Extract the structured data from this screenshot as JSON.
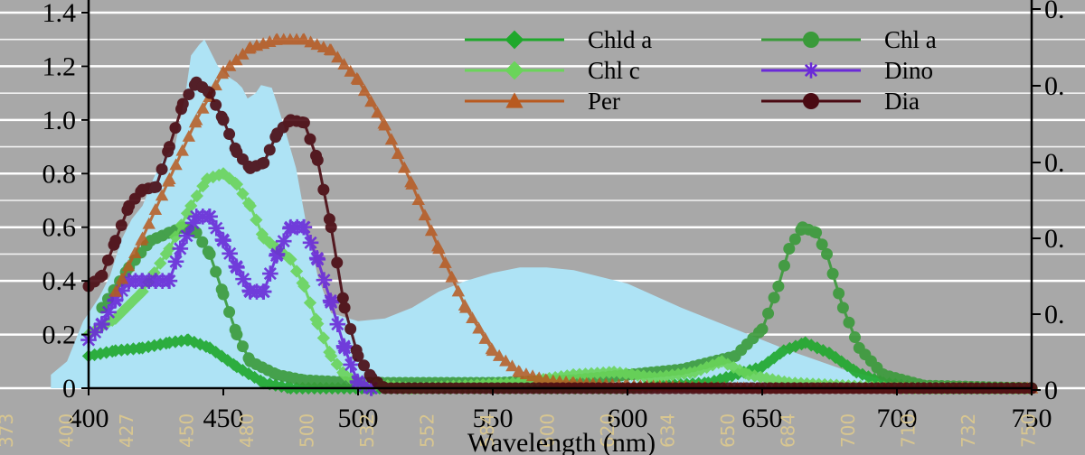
{
  "chart_data": {
    "type": "line",
    "xlabel": "Wavelength (nm)",
    "xlim": [
      400,
      750
    ],
    "ylim": [
      0,
      1.4
    ],
    "x_ticks": [
      400,
      450,
      500,
      550,
      600,
      650,
      700,
      750
    ],
    "y_ticks": [
      "0",
      "0.2",
      "0.4",
      "0.6",
      "0.8",
      "1.0",
      "1.2",
      "1.4"
    ],
    "right_ticks": [
      "0.",
      "0.",
      "0.",
      "0.",
      "0.",
      "0"
    ],
    "band_labels": [
      "373",
      "400",
      "427",
      "450",
      "480",
      "500",
      "532",
      "552",
      "584",
      "600",
      "620",
      "634",
      "650",
      "684",
      "700",
      "710",
      "732",
      "750"
    ],
    "grid": true,
    "legend_position": "top-right",
    "background_spectrum": {
      "color": "#aee3f5",
      "points": [
        [
          386,
          0.05
        ],
        [
          392,
          0.1
        ],
        [
          398,
          0.25
        ],
        [
          404,
          0.34
        ],
        [
          408,
          0.42
        ],
        [
          412,
          0.55
        ],
        [
          416,
          0.63
        ],
        [
          420,
          0.68
        ],
        [
          424,
          0.78
        ],
        [
          428,
          0.86
        ],
        [
          432,
          0.9
        ],
        [
          434,
          1.0
        ],
        [
          436,
          1.1
        ],
        [
          438,
          1.24
        ],
        [
          441,
          1.28
        ],
        [
          443,
          1.3
        ],
        [
          445,
          1.26
        ],
        [
          448,
          1.2
        ],
        [
          452,
          1.16
        ],
        [
          455,
          1.14
        ],
        [
          457,
          1.12
        ],
        [
          459,
          1.08
        ],
        [
          462,
          1.1
        ],
        [
          464,
          1.13
        ],
        [
          468,
          1.12
        ],
        [
          470,
          1.06
        ],
        [
          473,
          0.96
        ],
        [
          477,
          0.82
        ],
        [
          481,
          0.6
        ],
        [
          485,
          0.42
        ],
        [
          490,
          0.28
        ],
        [
          500,
          0.25
        ],
        [
          510,
          0.26
        ],
        [
          520,
          0.3
        ],
        [
          530,
          0.36
        ],
        [
          540,
          0.4
        ],
        [
          550,
          0.43
        ],
        [
          560,
          0.45
        ],
        [
          570,
          0.45
        ],
        [
          580,
          0.44
        ],
        [
          600,
          0.39
        ],
        [
          620,
          0.3
        ],
        [
          640,
          0.22
        ],
        [
          660,
          0.14
        ],
        [
          680,
          0.07
        ],
        [
          700,
          0.02
        ],
        [
          710,
          0.0
        ]
      ]
    },
    "series": [
      {
        "name": "Chld a",
        "color": "#1fa82c",
        "marker": "diamond",
        "points": [
          [
            400,
            0.12
          ],
          [
            410,
            0.14
          ],
          [
            420,
            0.15
          ],
          [
            430,
            0.17
          ],
          [
            437,
            0.18
          ],
          [
            445,
            0.15
          ],
          [
            455,
            0.08
          ],
          [
            465,
            0.02
          ],
          [
            475,
            0.0
          ],
          [
            600,
            0.0
          ],
          [
            630,
            0.02
          ],
          [
            650,
            0.08
          ],
          [
            658,
            0.14
          ],
          [
            666,
            0.17
          ],
          [
            675,
            0.13
          ],
          [
            685,
            0.06
          ],
          [
            695,
            0.02
          ],
          [
            710,
            0.0
          ],
          [
            750,
            0.0
          ]
        ]
      },
      {
        "name": "Chl a",
        "color": "#3a9a3a",
        "marker": "circle",
        "points": [
          [
            405,
            0.3
          ],
          [
            415,
            0.45
          ],
          [
            423,
            0.55
          ],
          [
            430,
            0.58
          ],
          [
            435,
            0.6
          ],
          [
            440,
            0.58
          ],
          [
            445,
            0.5
          ],
          [
            450,
            0.35
          ],
          [
            455,
            0.2
          ],
          [
            460,
            0.1
          ],
          [
            470,
            0.05
          ],
          [
            480,
            0.03
          ],
          [
            500,
            0.02
          ],
          [
            550,
            0.02
          ],
          [
            580,
            0.03
          ],
          [
            600,
            0.05
          ],
          [
            620,
            0.07
          ],
          [
            640,
            0.12
          ],
          [
            650,
            0.22
          ],
          [
            656,
            0.38
          ],
          [
            660,
            0.52
          ],
          [
            665,
            0.6
          ],
          [
            670,
            0.58
          ],
          [
            674,
            0.5
          ],
          [
            680,
            0.3
          ],
          [
            686,
            0.15
          ],
          [
            695,
            0.05
          ],
          [
            710,
            0.01
          ],
          [
            750,
            0.0
          ]
        ]
      },
      {
        "name": "Chl c",
        "color": "#6ad45a",
        "marker": "diamond",
        "points": [
          [
            400,
            0.2
          ],
          [
            410,
            0.26
          ],
          [
            420,
            0.36
          ],
          [
            430,
            0.52
          ],
          [
            438,
            0.68
          ],
          [
            444,
            0.78
          ],
          [
            450,
            0.8
          ],
          [
            455,
            0.76
          ],
          [
            460,
            0.68
          ],
          [
            465,
            0.56
          ],
          [
            470,
            0.52
          ],
          [
            475,
            0.48
          ],
          [
            480,
            0.38
          ],
          [
            485,
            0.24
          ],
          [
            490,
            0.12
          ],
          [
            495,
            0.05
          ],
          [
            500,
            0.02
          ],
          [
            520,
            0.0
          ],
          [
            560,
            0.02
          ],
          [
            580,
            0.05
          ],
          [
            595,
            0.06
          ],
          [
            610,
            0.04
          ],
          [
            625,
            0.06
          ],
          [
            635,
            0.1
          ],
          [
            645,
            0.05
          ],
          [
            660,
            0.02
          ],
          [
            700,
            0.0
          ],
          [
            750,
            0.0
          ]
        ]
      },
      {
        "name": "Dino",
        "color": "#6a2ad8",
        "marker": "asterisk",
        "points": [
          [
            400,
            0.18
          ],
          [
            405,
            0.24
          ],
          [
            410,
            0.33
          ],
          [
            415,
            0.4
          ],
          [
            420,
            0.4
          ],
          [
            425,
            0.4
          ],
          [
            430,
            0.4
          ],
          [
            434,
            0.52
          ],
          [
            440,
            0.64
          ],
          [
            445,
            0.64
          ],
          [
            450,
            0.55
          ],
          [
            455,
            0.45
          ],
          [
            460,
            0.36
          ],
          [
            465,
            0.36
          ],
          [
            470,
            0.5
          ],
          [
            475,
            0.6
          ],
          [
            480,
            0.6
          ],
          [
            485,
            0.48
          ],
          [
            490,
            0.32
          ],
          [
            495,
            0.15
          ],
          [
            500,
            0.02
          ],
          [
            505,
            0.0
          ]
        ]
      },
      {
        "name": "Per",
        "color": "#b85a20",
        "marker": "triangle",
        "points": [
          [
            410,
            0.36
          ],
          [
            420,
            0.56
          ],
          [
            430,
            0.78
          ],
          [
            440,
            1.0
          ],
          [
            450,
            1.18
          ],
          [
            460,
            1.27
          ],
          [
            470,
            1.3
          ],
          [
            480,
            1.3
          ],
          [
            490,
            1.26
          ],
          [
            500,
            1.15
          ],
          [
            510,
            0.98
          ],
          [
            520,
            0.76
          ],
          [
            530,
            0.52
          ],
          [
            540,
            0.3
          ],
          [
            550,
            0.14
          ],
          [
            560,
            0.06
          ],
          [
            570,
            0.03
          ],
          [
            580,
            0.02
          ],
          [
            600,
            0.01
          ],
          [
            650,
            0.0
          ],
          [
            750,
            0.0
          ]
        ]
      },
      {
        "name": "Dia",
        "color": "#4a0a12",
        "marker": "circle",
        "points": [
          [
            400,
            0.38
          ],
          [
            405,
            0.42
          ],
          [
            410,
            0.55
          ],
          [
            415,
            0.68
          ],
          [
            420,
            0.74
          ],
          [
            425,
            0.75
          ],
          [
            430,
            0.9
          ],
          [
            435,
            1.06
          ],
          [
            440,
            1.14
          ],
          [
            445,
            1.1
          ],
          [
            450,
            1.0
          ],
          [
            455,
            0.88
          ],
          [
            460,
            0.82
          ],
          [
            465,
            0.84
          ],
          [
            470,
            0.95
          ],
          [
            475,
            1.0
          ],
          [
            480,
            0.99
          ],
          [
            485,
            0.85
          ],
          [
            490,
            0.6
          ],
          [
            495,
            0.3
          ],
          [
            500,
            0.12
          ],
          [
            505,
            0.04
          ],
          [
            510,
            0.0
          ],
          [
            710,
            0.0
          ],
          [
            750,
            0.0
          ]
        ]
      }
    ]
  }
}
